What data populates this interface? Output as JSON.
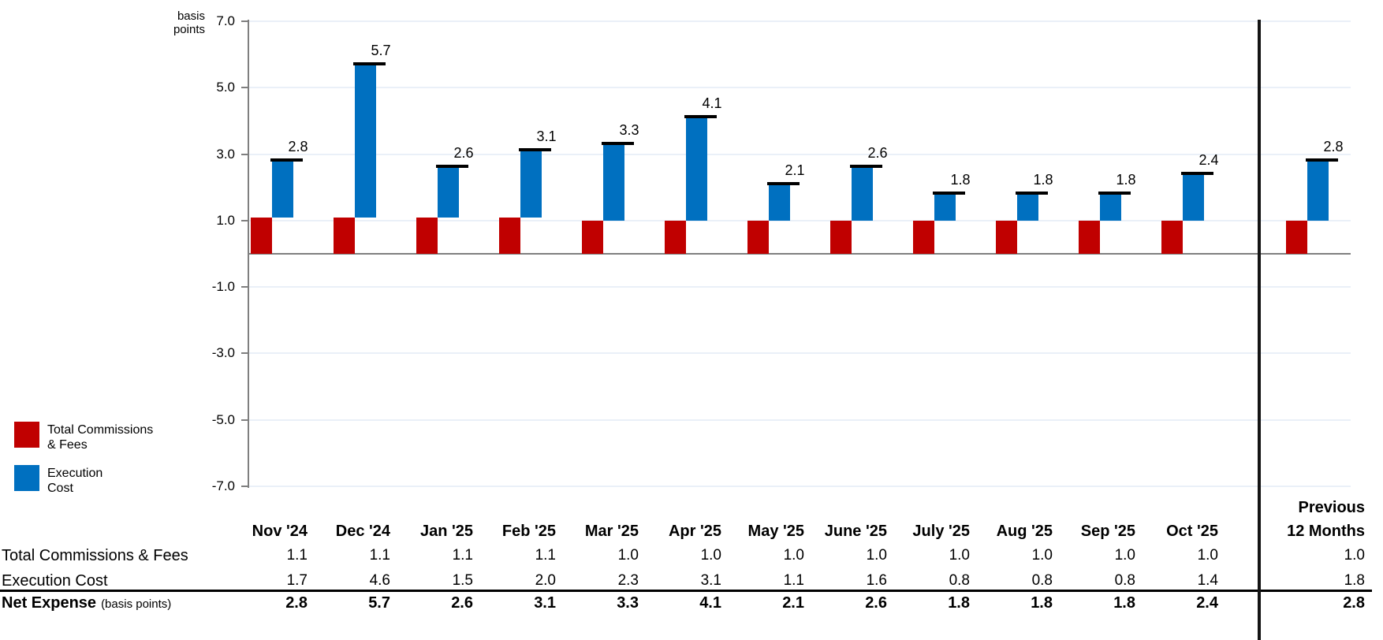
{
  "colors": {
    "commissions_red": "#C00000",
    "execution_blue": "#0070C0",
    "gridline": "#EAF0F8",
    "axis_gray": "#7F7F7F",
    "net_cap_black": "#000000",
    "divider_black": "#141414",
    "separator_black": "#000000"
  },
  "legend": [
    {
      "name": "Total Commissions & Fees",
      "lines": [
        "Total Commissions",
        "& Fees"
      ],
      "color": "#C00000"
    },
    {
      "name": "Execution Cost",
      "lines": [
        "Execution",
        "Cost"
      ],
      "color": "#0070C0"
    }
  ],
  "chart_data": {
    "type": "bar",
    "subtype": "stacked column (commissions base + execution cost on top) with black net-expense cap markers and data labels",
    "ylabel": "basis points",
    "ylabel_lines": [
      "basis",
      "points"
    ],
    "categories": [
      "Nov '24",
      "Dec '24",
      "Jan '25",
      "Feb '25",
      "Mar '25",
      "Apr '25",
      "May '25",
      "June '25",
      "July '25",
      "Aug '25",
      "Sep '25",
      "Oct '25"
    ],
    "extra_category": "Previous 12 Months",
    "series": [
      {
        "name": "Total Commissions & Fees",
        "color": "#C00000",
        "values": [
          1.1,
          1.1,
          1.1,
          1.1,
          1.0,
          1.0,
          1.0,
          1.0,
          1.0,
          1.0,
          1.0,
          1.0
        ],
        "previous_12_months": 1.0
      },
      {
        "name": "Execution Cost",
        "color": "#0070C0",
        "stacked_on": "Total Commissions & Fees",
        "values": [
          1.7,
          4.6,
          1.5,
          2.0,
          2.3,
          3.1,
          1.1,
          1.6,
          0.8,
          0.8,
          0.8,
          1.4
        ],
        "previous_12_months": 1.8
      }
    ],
    "totals": {
      "name": "Net Expense",
      "unit": "basis points",
      "values": [
        2.8,
        5.7,
        2.6,
        3.1,
        3.3,
        4.1,
        2.1,
        2.6,
        1.8,
        1.8,
        1.8,
        2.4
      ],
      "previous_12_months": 2.8
    },
    "data_labels": "net expense total shown above each column",
    "ylim": [
      -7.0,
      7.0
    ],
    "yticks": [
      7,
      5,
      3,
      1,
      -1,
      -3,
      -5,
      -7
    ],
    "ytick_labels": [
      "7.0",
      "5.0",
      "3.0",
      "1.0",
      "-1.0",
      "-3.0",
      "-5.0",
      "-7.0"
    ],
    "grid": true,
    "legend_position": "left"
  },
  "table": {
    "rows": [
      {
        "label": "Total Commissions & Fees"
      },
      {
        "label": "Execution Cost"
      }
    ],
    "net_label": "Net Expense",
    "net_label_suffix": "(basis points)",
    "prev_header_lines": [
      "Previous",
      "12 Months"
    ]
  }
}
